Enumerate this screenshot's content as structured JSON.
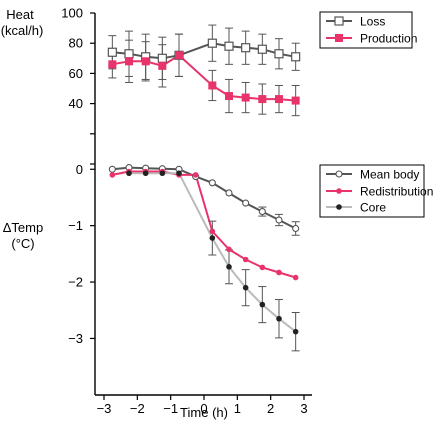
{
  "chart_data": [
    {
      "type": "line",
      "ylabel_lines": [
        "Heat",
        "(kcal/h)"
      ],
      "ylim": [
        0,
        100
      ],
      "yticks": [
        0,
        20,
        40,
        60,
        80,
        100
      ],
      "ytick_labels": [
        "",
        "",
        "40",
        "60",
        "80",
        "100"
      ],
      "legend_position": "top-right",
      "series": [
        {
          "name": "Loss",
          "color": "#555555",
          "marker": "open-square",
          "x": [
            -2.75,
            -2.25,
            -1.75,
            -1.25,
            -0.75,
            0.25,
            0.75,
            1.25,
            1.75,
            2.25,
            2.75
          ],
          "y": [
            74,
            73,
            71,
            70,
            72,
            80,
            78,
            77,
            76,
            73,
            71
          ],
          "err": [
            11,
            15,
            15,
            14,
            14,
            12,
            12,
            11,
            10,
            10,
            9
          ]
        },
        {
          "name": "Production",
          "color": "#e8336b",
          "marker": "filled-square",
          "x": [
            -2.75,
            -2.25,
            -1.75,
            -1.25,
            -0.75,
            0.25,
            0.75,
            1.25,
            1.75,
            2.25,
            2.75
          ],
          "y": [
            66,
            68,
            68,
            65,
            72,
            52,
            45,
            44,
            43,
            43,
            42
          ],
          "err": [
            9,
            14,
            13,
            14,
            14,
            10,
            11,
            10,
            10,
            9,
            10
          ]
        }
      ]
    },
    {
      "type": "line",
      "ylabel_lines": [
        "ΔTemp",
        "(°C)"
      ],
      "ylim": [
        -3.4,
        0.2
      ],
      "yticks": [
        0,
        -1,
        -2,
        -3
      ],
      "ytick_labels": [
        "0",
        "−1",
        "−2",
        "−3"
      ],
      "xlabel": "Time (h)",
      "xlim": [
        -3,
        3
      ],
      "xticks": [
        -3,
        -2,
        -1,
        0,
        1,
        2,
        3
      ],
      "xtick_labels": [
        "−3",
        "−2",
        "−1",
        "0",
        "1",
        "2",
        "3"
      ],
      "legend_position": "top-right",
      "series": [
        {
          "name": "Mean body",
          "color": "#555555",
          "marker": "open-circle",
          "x": [
            -2.75,
            -2.25,
            -1.75,
            -1.25,
            -0.75,
            -0.25,
            0.25,
            0.75,
            1.25,
            1.75,
            2.25,
            2.75
          ],
          "y": [
            0.0,
            0.03,
            0.02,
            0.01,
            0.0,
            -0.13,
            -0.24,
            -0.42,
            -0.6,
            -0.75,
            -0.9,
            -1.05
          ],
          "err": [
            0,
            0,
            0,
            0,
            0,
            0,
            0,
            0,
            0,
            0.08,
            0.1,
            0.12
          ]
        },
        {
          "name": "Redistribution",
          "color": "#e8336b",
          "marker": "filled-circle",
          "x": [
            -2.75,
            -2.25,
            -1.75,
            -1.25,
            -0.75,
            -0.25,
            0.25,
            0.75,
            1.25,
            1.75,
            2.25,
            2.75
          ],
          "y": [
            -0.1,
            -0.04,
            -0.04,
            -0.04,
            -0.1,
            -0.1,
            -1.1,
            -1.42,
            -1.6,
            -1.74,
            -1.83,
            -1.92
          ],
          "err": [
            0,
            0,
            0,
            0,
            0,
            0,
            0,
            0,
            0,
            0,
            0,
            0
          ]
        },
        {
          "name": "Core",
          "color": "#222222",
          "line_color": "#bbbbbb",
          "marker": "filled-circle",
          "x": [
            -2.25,
            -1.75,
            -1.25,
            -0.75,
            0.25,
            0.75,
            1.25,
            1.75,
            2.25,
            2.75
          ],
          "y": [
            -0.07,
            -0.07,
            -0.07,
            -0.07,
            -1.22,
            -1.73,
            -2.1,
            -2.4,
            -2.65,
            -2.88
          ],
          "err": [
            0,
            0,
            0,
            0,
            0.3,
            0.3,
            0.32,
            0.32,
            0.34,
            0.34
          ]
        }
      ]
    }
  ]
}
